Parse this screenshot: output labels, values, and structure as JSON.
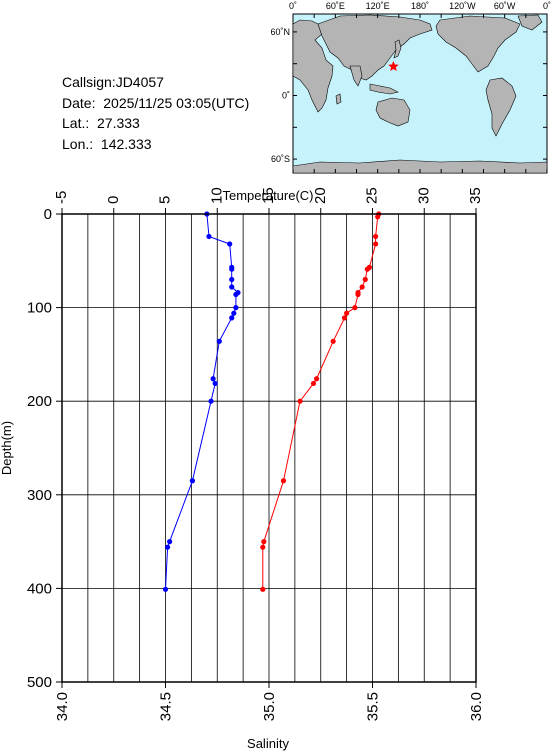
{
  "info": {
    "callsign": "Callsign:JD4057",
    "date": "Date:  2025/11/25 03:05(UTC)",
    "lat": "Lat.:  27.333",
    "lon": "Lon.:  142.333"
  },
  "map": {
    "lon_labels": [
      "0˚",
      "60˚E",
      "120˚E",
      "180˚",
      "120˚W",
      "60˚W",
      "0˚"
    ],
    "lat_labels": [
      "60˚N",
      "0˚",
      "60˚S"
    ],
    "colors": {
      "ocean": "#c6f2fb",
      "land": "#b4b4b4",
      "marker": "#ff0000"
    },
    "marker_icon": "star-icon",
    "station": {
      "lat": 27.333,
      "lon": 142.333
    }
  },
  "chart_data": {
    "type": "line",
    "top_axis_label": "Temperature(C)",
    "bottom_axis_label": "Salinity",
    "ylabel": "Depth(m)",
    "ylim": [
      0,
      500
    ],
    "y_reversed": true,
    "grid": true,
    "temperature_range": [
      -5,
      35
    ],
    "salinity_range": [
      34.0,
      36.0
    ],
    "temperature_ticks": [
      "-5",
      "0",
      "5",
      "10",
      "15",
      "20",
      "25",
      "30",
      "35"
    ],
    "salinity_ticks": [
      "34.0",
      "34.5",
      "35.0",
      "35.5",
      "36.0"
    ],
    "depth_ticks": [
      "0",
      "100",
      "200",
      "300",
      "400",
      "500"
    ],
    "series": [
      {
        "color": "#ff0000",
        "axis": "temperature",
        "points": [
          {
            "depth": 0,
            "value": 25.6
          },
          {
            "depth": 3,
            "value": 25.5
          },
          {
            "depth": 24,
            "value": 25.3
          },
          {
            "depth": 32,
            "value": 25.3
          },
          {
            "depth": 57,
            "value": 24.7
          },
          {
            "depth": 59,
            "value": 24.5
          },
          {
            "depth": 70,
            "value": 24.3
          },
          {
            "depth": 78,
            "value": 24.0
          },
          {
            "depth": 84,
            "value": 23.6
          },
          {
            "depth": 86,
            "value": 23.6
          },
          {
            "depth": 100,
            "value": 23.3
          },
          {
            "depth": 106,
            "value": 22.5
          },
          {
            "depth": 111,
            "value": 22.3
          },
          {
            "depth": 136,
            "value": 21.2
          },
          {
            "depth": 176,
            "value": 19.6
          },
          {
            "depth": 181,
            "value": 19.3
          },
          {
            "depth": 200,
            "value": 18.0
          },
          {
            "depth": 285,
            "value": 16.4
          },
          {
            "depth": 350,
            "value": 14.5
          },
          {
            "depth": 356,
            "value": 14.4
          },
          {
            "depth": 401,
            "value": 14.4
          }
        ]
      },
      {
        "color": "#0000ff",
        "axis": "salinity",
        "points": [
          {
            "depth": 0,
            "value": 34.7
          },
          {
            "depth": 24,
            "value": 34.71
          },
          {
            "depth": 32,
            "value": 34.81
          },
          {
            "depth": 57,
            "value": 34.82
          },
          {
            "depth": 59,
            "value": 34.82
          },
          {
            "depth": 70,
            "value": 34.82
          },
          {
            "depth": 78,
            "value": 34.82
          },
          {
            "depth": 84,
            "value": 34.85
          },
          {
            "depth": 86,
            "value": 34.84
          },
          {
            "depth": 100,
            "value": 34.84
          },
          {
            "depth": 106,
            "value": 34.83
          },
          {
            "depth": 111,
            "value": 34.82
          },
          {
            "depth": 136,
            "value": 34.76
          },
          {
            "depth": 176,
            "value": 34.73
          },
          {
            "depth": 181,
            "value": 34.74
          },
          {
            "depth": 200,
            "value": 34.72
          },
          {
            "depth": 285,
            "value": 34.63
          },
          {
            "depth": 350,
            "value": 34.52
          },
          {
            "depth": 356,
            "value": 34.51
          },
          {
            "depth": 401,
            "value": 34.5
          }
        ]
      }
    ]
  }
}
